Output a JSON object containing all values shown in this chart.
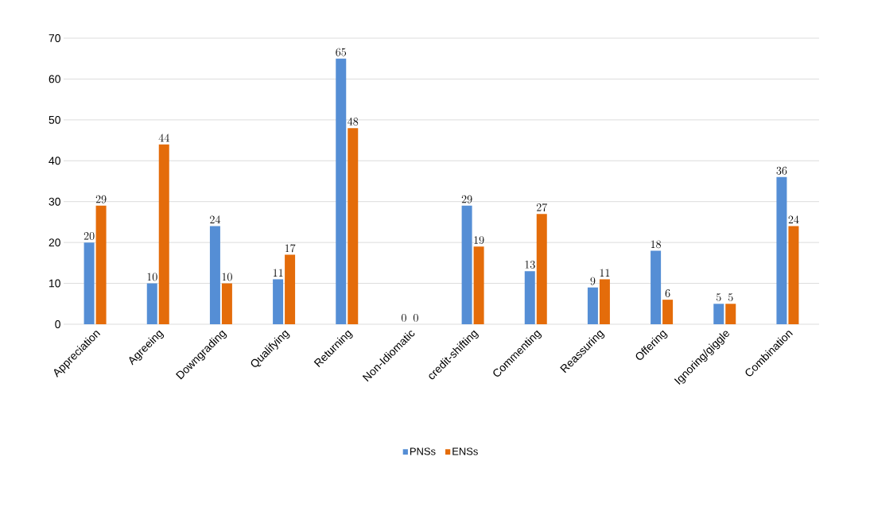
{
  "chart_data": {
    "type": "bar",
    "categories": [
      "Appreciation",
      "Agreeing",
      "Downgrading",
      "Qualifying",
      "Returning",
      "Non-Idiomatic",
      "credit-shifting",
      "Commenting",
      "Reassuring",
      "Offering",
      "Ignoring/giggle",
      "Combination"
    ],
    "series": [
      {
        "name": "PNSs",
        "color": "#558ed5",
        "values": [
          20,
          10,
          24,
          11,
          65,
          0,
          29,
          13,
          9,
          18,
          5,
          36
        ]
      },
      {
        "name": "ENSs",
        "color": "#e46c0a",
        "values": [
          29,
          44,
          10,
          17,
          48,
          0,
          19,
          27,
          11,
          6,
          5,
          24
        ]
      }
    ],
    "ylim": [
      0,
      70
    ],
    "yticks": [
      0,
      10,
      20,
      30,
      40,
      50,
      60,
      70
    ],
    "grid": "y",
    "legend": "bottom",
    "data_labels": true
  }
}
